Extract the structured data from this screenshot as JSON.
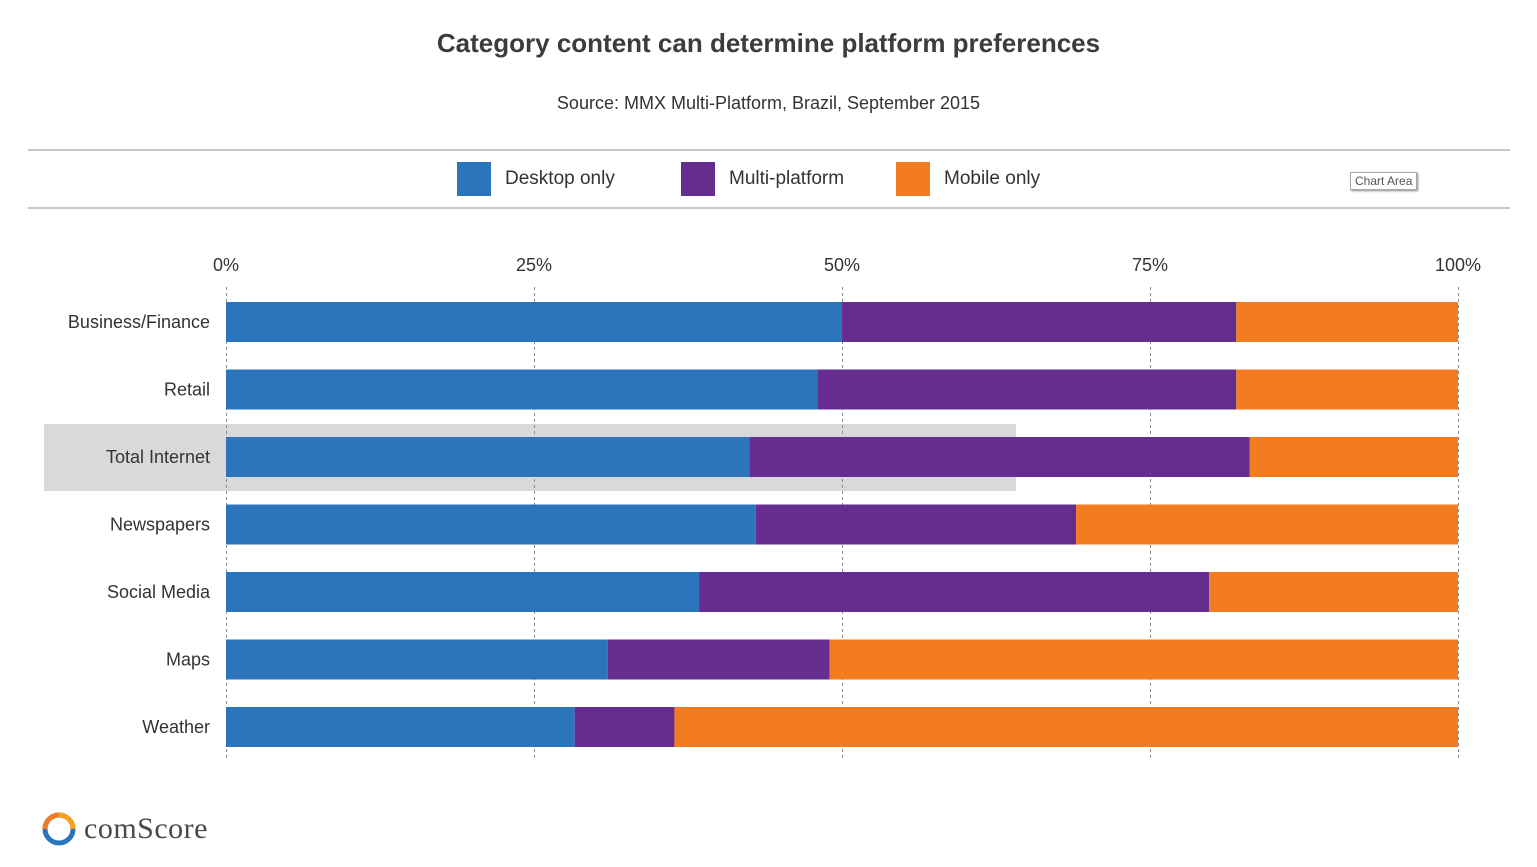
{
  "header": {
    "title": "Category content can determine platform preferences",
    "subtitle": "Source: MMX Multi-Platform,  Brazil,  September 2015"
  },
  "legend": {
    "items": [
      {
        "label": "Desktop only",
        "color": "#2a75bb"
      },
      {
        "label": "Multi-platform",
        "color": "#662d91"
      },
      {
        "label": "Mobile only",
        "color": "#f37b20"
      }
    ]
  },
  "tooltip": {
    "chart_area": "Chart Area"
  },
  "brand": {
    "name": "comScore"
  },
  "chart_data": {
    "type": "bar",
    "orientation": "horizontal",
    "stacked": true,
    "categories": [
      "Business/Finance",
      "Retail",
      "Total Internet",
      "Newspapers",
      "Social Media",
      "Maps",
      "Weather"
    ],
    "highlighted_category": "Total Internet",
    "series": [
      {
        "name": "Desktop only",
        "color": "#2a75bb",
        "values": [
          50,
          48,
          42.5,
          43,
          38.4,
          31,
          28.3
        ]
      },
      {
        "name": "Multi-platform",
        "color": "#662d91",
        "values": [
          32,
          34,
          40.6,
          26,
          41.4,
          18,
          8.1
        ]
      },
      {
        "name": "Mobile only",
        "color": "#f37b20",
        "values": [
          18,
          18,
          16.9,
          31,
          20.2,
          51,
          63.6
        ]
      }
    ],
    "xlim": [
      0,
      100
    ],
    "xticks": [
      0,
      25,
      50,
      75,
      100
    ],
    "xtick_labels": [
      "0%",
      "25%",
      "50%",
      "75%",
      "100%"
    ],
    "grid": true,
    "legend_position": "top-center"
  }
}
